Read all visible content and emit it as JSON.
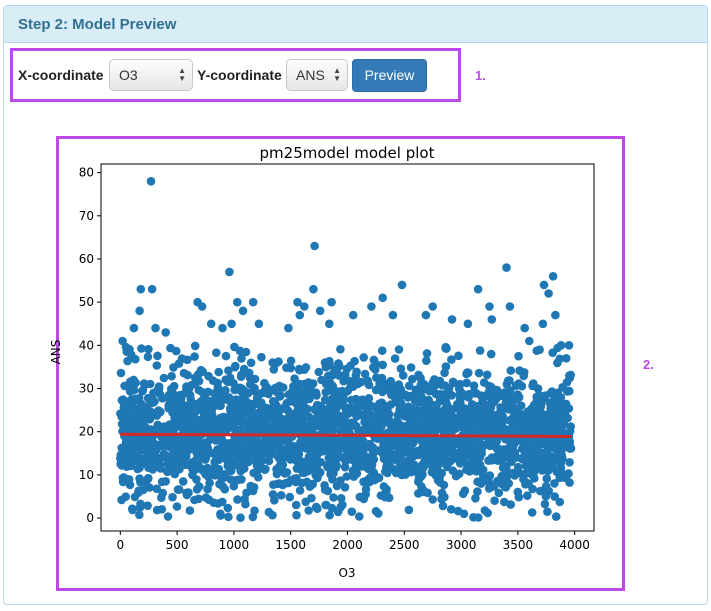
{
  "panel": {
    "title": "Step 2: Model Preview"
  },
  "controls": {
    "x_label": "X-coordinate",
    "x_value": "O3",
    "y_label": "Y-coordinate",
    "y_value": "ANS",
    "preview_label": "Preview"
  },
  "annotations": {
    "one": "1.",
    "two": "2."
  },
  "colors": {
    "accent": "#bf49e8",
    "header_bg": "#d9edf7",
    "header_text": "#31708f",
    "button": "#337ab7",
    "points": "#1f77b4",
    "fit_line": "#d62728"
  },
  "chart_data": {
    "type": "scatter",
    "title": "pm25model model plot",
    "xlabel": "O3",
    "ylabel": "ANS",
    "xlim": [
      -170,
      4170
    ],
    "ylim": [
      -3,
      82
    ],
    "xticks": [
      0,
      500,
      1000,
      1500,
      2000,
      2500,
      3000,
      3500,
      4000
    ],
    "yticks": [
      0,
      10,
      20,
      30,
      40,
      50,
      60,
      70,
      80
    ],
    "series": [
      {
        "points": [
          [
            270,
            78
          ],
          [
            1710,
            63
          ],
          [
            960,
            57
          ],
          [
            3400,
            58
          ],
          [
            3810,
            56
          ],
          [
            180,
            53
          ],
          [
            280,
            53
          ],
          [
            1700,
            53
          ],
          [
            2480,
            54
          ],
          [
            3150,
            53
          ],
          [
            3730,
            54
          ],
          [
            3770,
            52
          ],
          [
            680,
            50
          ],
          [
            720,
            49
          ],
          [
            1030,
            50
          ],
          [
            1080,
            48
          ],
          [
            1170,
            50
          ],
          [
            1560,
            50
          ],
          [
            1620,
            49
          ],
          [
            1760,
            48
          ],
          [
            1860,
            50
          ],
          [
            2210,
            49
          ],
          [
            2310,
            51
          ],
          [
            2750,
            49
          ],
          [
            3250,
            49
          ],
          [
            3430,
            49
          ],
          [
            3830,
            47
          ],
          [
            120,
            44
          ],
          [
            170,
            48
          ],
          [
            310,
            44
          ],
          [
            400,
            43
          ],
          [
            800,
            45
          ],
          [
            900,
            44
          ],
          [
            980,
            45
          ],
          [
            1220,
            45
          ],
          [
            1480,
            44
          ],
          [
            1580,
            47
          ],
          [
            1840,
            45
          ],
          [
            2050,
            47
          ],
          [
            2400,
            47
          ],
          [
            2690,
            47
          ],
          [
            2920,
            46
          ],
          [
            3060,
            45
          ],
          [
            3270,
            46
          ],
          [
            3560,
            44
          ],
          [
            3720,
            45
          ],
          [
            3880,
            40
          ],
          [
            3950,
            40
          ],
          [
            20,
            41
          ],
          [
            3600,
            41
          ]
        ],
        "band": {
          "x_range": [
            0,
            3970
          ],
          "y_range": [
            0,
            40
          ],
          "density": "very dense"
        }
      }
    ],
    "fit_line": {
      "x": [
        0,
        3970
      ],
      "y": [
        19.4,
        18.9
      ]
    }
  }
}
